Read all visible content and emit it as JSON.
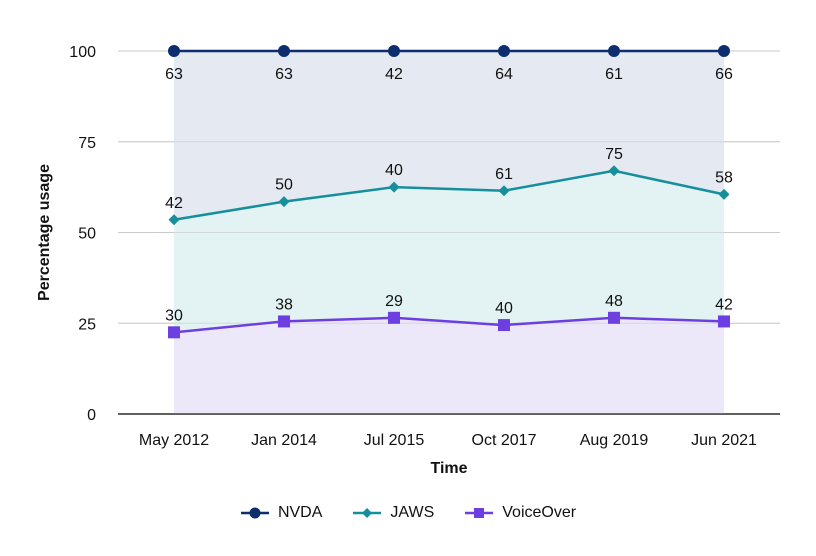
{
  "chart_data": {
    "type": "area",
    "title": "",
    "xlabel": "Time",
    "ylabel": "Percentage usage",
    "categories": [
      "May 2012",
      "Jan 2014",
      "Jul 2015",
      "Oct 2017",
      "Aug 2019",
      "Jun 2021"
    ],
    "ylim": [
      0,
      100
    ],
    "yticks": [
      0,
      25,
      50,
      75,
      100
    ],
    "grid": true,
    "legend_position": "bottom",
    "series": [
      {
        "name": "NVDA",
        "color": "#0d2d6e",
        "fill": "#e5e9f1",
        "marker": "circle",
        "values": [
          100,
          100,
          100,
          100,
          100,
          100
        ],
        "labels": [
          "63",
          "63",
          "42",
          "64",
          "61",
          "66"
        ]
      },
      {
        "name": "JAWS",
        "color": "#168f9c",
        "fill": "#e3f3f3",
        "marker": "diamond",
        "values": [
          53.5,
          58.5,
          62.5,
          61.5,
          67,
          60.5
        ],
        "labels": [
          "42",
          "50",
          "40",
          "61",
          "75",
          "58"
        ]
      },
      {
        "name": "VoiceOver",
        "color": "#6d3fe0",
        "fill": "#ece8f9",
        "marker": "square",
        "values": [
          22.5,
          25.5,
          26.5,
          24.5,
          26.5,
          25.5
        ],
        "labels": [
          "30",
          "38",
          "29",
          "40",
          "48",
          "42"
        ]
      }
    ]
  }
}
